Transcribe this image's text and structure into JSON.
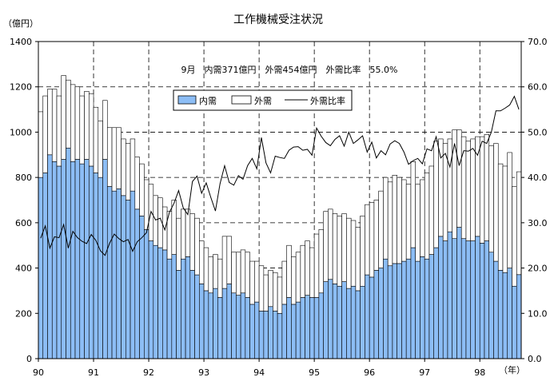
{
  "chart_data": {
    "type": "bar",
    "stacked": true,
    "title": "工作機械受注状況",
    "ylabel": "（億円）",
    "xlabel": "（年）",
    "ylim": [
      0,
      1400
    ],
    "y2lim": [
      0,
      70
    ],
    "yticks": [
      "0",
      "200",
      "400",
      "600",
      "800",
      "1000",
      "1200",
      "1400"
    ],
    "y2ticks": [
      "0.0",
      "10.0",
      "20.0",
      "30.0",
      "40.0",
      "50.0",
      "60.0",
      "70.0"
    ],
    "xticks": [
      "90",
      "91",
      "92",
      "93",
      "94",
      "95",
      "96",
      "97",
      "98"
    ],
    "grid": true,
    "legend": "top-center",
    "annotation": "9月　内需371億円　外需454億円　外需比率　55.0%",
    "x": [
      "1990-01",
      "1990-02",
      "1990-03",
      "1990-04",
      "1990-05",
      "1990-06",
      "1990-07",
      "1990-08",
      "1990-09",
      "1990-10",
      "1990-11",
      "1990-12",
      "1991-01",
      "1991-02",
      "1991-03",
      "1991-04",
      "1991-05",
      "1991-06",
      "1991-07",
      "1991-08",
      "1991-09",
      "1991-10",
      "1991-11",
      "1991-12",
      "1992-01",
      "1992-02",
      "1992-03",
      "1992-04",
      "1992-05",
      "1992-06",
      "1992-07",
      "1992-08",
      "1992-09",
      "1992-10",
      "1992-11",
      "1992-12",
      "1993-01",
      "1993-02",
      "1993-03",
      "1993-04",
      "1993-05",
      "1993-06",
      "1993-07",
      "1993-08",
      "1993-09",
      "1993-10",
      "1993-11",
      "1993-12",
      "1994-01",
      "1994-02",
      "1994-03",
      "1994-04",
      "1994-05",
      "1994-06",
      "1994-07",
      "1994-08",
      "1994-09",
      "1994-10",
      "1994-11",
      "1994-12",
      "1995-01",
      "1995-02",
      "1995-03",
      "1995-04",
      "1995-05",
      "1995-06",
      "1995-07",
      "1995-08",
      "1995-09",
      "1995-10",
      "1995-11",
      "1995-12",
      "1996-01",
      "1996-02",
      "1996-03",
      "1996-04",
      "1996-05",
      "1996-06",
      "1996-07",
      "1996-08",
      "1996-09",
      "1996-10",
      "1996-11",
      "1996-12",
      "1997-01",
      "1997-02",
      "1997-03",
      "1997-04",
      "1997-05",
      "1997-06",
      "1997-07",
      "1997-08",
      "1997-09",
      "1997-10",
      "1997-11",
      "1997-12",
      "1998-01",
      "1998-02",
      "1998-03",
      "1998-04",
      "1998-05",
      "1998-06",
      "1998-07",
      "1998-08",
      "1998-09"
    ],
    "series": [
      {
        "name": "内需",
        "type": "bar",
        "axis": "left",
        "color": "#8cbdf5",
        "values": [
          800,
          820,
          900,
          870,
          850,
          880,
          930,
          870,
          880,
          860,
          880,
          850,
          820,
          800,
          880,
          760,
          740,
          750,
          720,
          700,
          740,
          660,
          630,
          570,
          520,
          500,
          490,
          480,
          440,
          460,
          390,
          440,
          450,
          390,
          370,
          330,
          300,
          290,
          310,
          270,
          310,
          330,
          290,
          280,
          290,
          270,
          240,
          250,
          210,
          210,
          230,
          210,
          200,
          240,
          270,
          240,
          250,
          270,
          280,
          270,
          270,
          290,
          340,
          350,
          330,
          320,
          340,
          310,
          320,
          300,
          320,
          370,
          360,
          390,
          400,
          440,
          410,
          420,
          420,
          430,
          440,
          490,
          430,
          450,
          440,
          460,
          490,
          540,
          520,
          560,
          530,
          580,
          530,
          520,
          520,
          540,
          510,
          520,
          470,
          430,
          390,
          380,
          400,
          320,
          371
        ]
      },
      {
        "name": "外需",
        "type": "bar",
        "axis": "left",
        "color": "#ffffff",
        "values": [
          290,
          340,
          290,
          320,
          310,
          370,
          300,
          340,
          320,
          300,
          300,
          320,
          290,
          250,
          260,
          260,
          280,
          270,
          250,
          250,
          230,
          230,
          230,
          220,
          250,
          220,
          220,
          190,
          210,
          240,
          230,
          220,
          210,
          250,
          250,
          190,
          190,
          160,
          150,
          170,
          230,
          210,
          180,
          190,
          190,
          200,
          190,
          180,
          200,
          160,
          160,
          170,
          160,
          190,
          230,
          210,
          220,
          230,
          240,
          220,
          280,
          280,
          310,
          310,
          310,
          310,
          300,
          310,
          290,
          280,
          310,
          310,
          330,
          310,
          340,
          360,
          370,
          390,
          380,
          360,
          330,
          380,
          340,
          340,
          380,
          390,
          470,
          430,
          430,
          410,
          480,
          430,
          450,
          440,
          450,
          440,
          470,
          470,
          470,
          520,
          470,
          470,
          510,
          440,
          454
        ]
      },
      {
        "name": "外需比率",
        "type": "line",
        "axis": "right",
        "color": "#000000",
        "values": [
          26.6,
          29.3,
          24.4,
          26.9,
          26.7,
          29.6,
          24.4,
          28.1,
          26.7,
          25.9,
          25.4,
          27.4,
          26.1,
          23.8,
          22.8,
          25.5,
          27.5,
          26.5,
          25.8,
          26.3,
          23.7,
          25.8,
          26.7,
          27.8,
          32.5,
          30.6,
          31.0,
          28.4,
          32.3,
          34.3,
          37.1,
          33.3,
          31.8,
          39.1,
          40.3,
          36.5,
          38.8,
          35.6,
          32.6,
          38.6,
          42.6,
          38.9,
          38.3,
          40.4,
          39.6,
          42.6,
          44.2,
          41.9,
          48.8,
          43.2,
          41.0,
          44.7,
          44.4,
          44.2,
          46.0,
          46.7,
          46.8,
          46.0,
          46.2,
          44.9,
          50.9,
          49.1,
          47.7,
          47.0,
          48.4,
          49.2,
          46.9,
          50.0,
          47.5,
          48.3,
          49.2,
          45.6,
          47.8,
          44.3,
          45.9,
          45.0,
          47.4,
          48.1,
          47.5,
          45.6,
          42.9,
          43.7,
          44.2,
          43.0,
          46.3,
          45.9,
          49.0,
          44.3,
          45.3,
          42.3,
          47.5,
          42.6,
          45.9,
          45.8,
          46.4,
          44.9,
          48.0,
          47.5,
          50.0,
          54.7,
          54.7,
          55.3,
          56.0,
          57.9,
          55.0
        ]
      }
    ]
  }
}
